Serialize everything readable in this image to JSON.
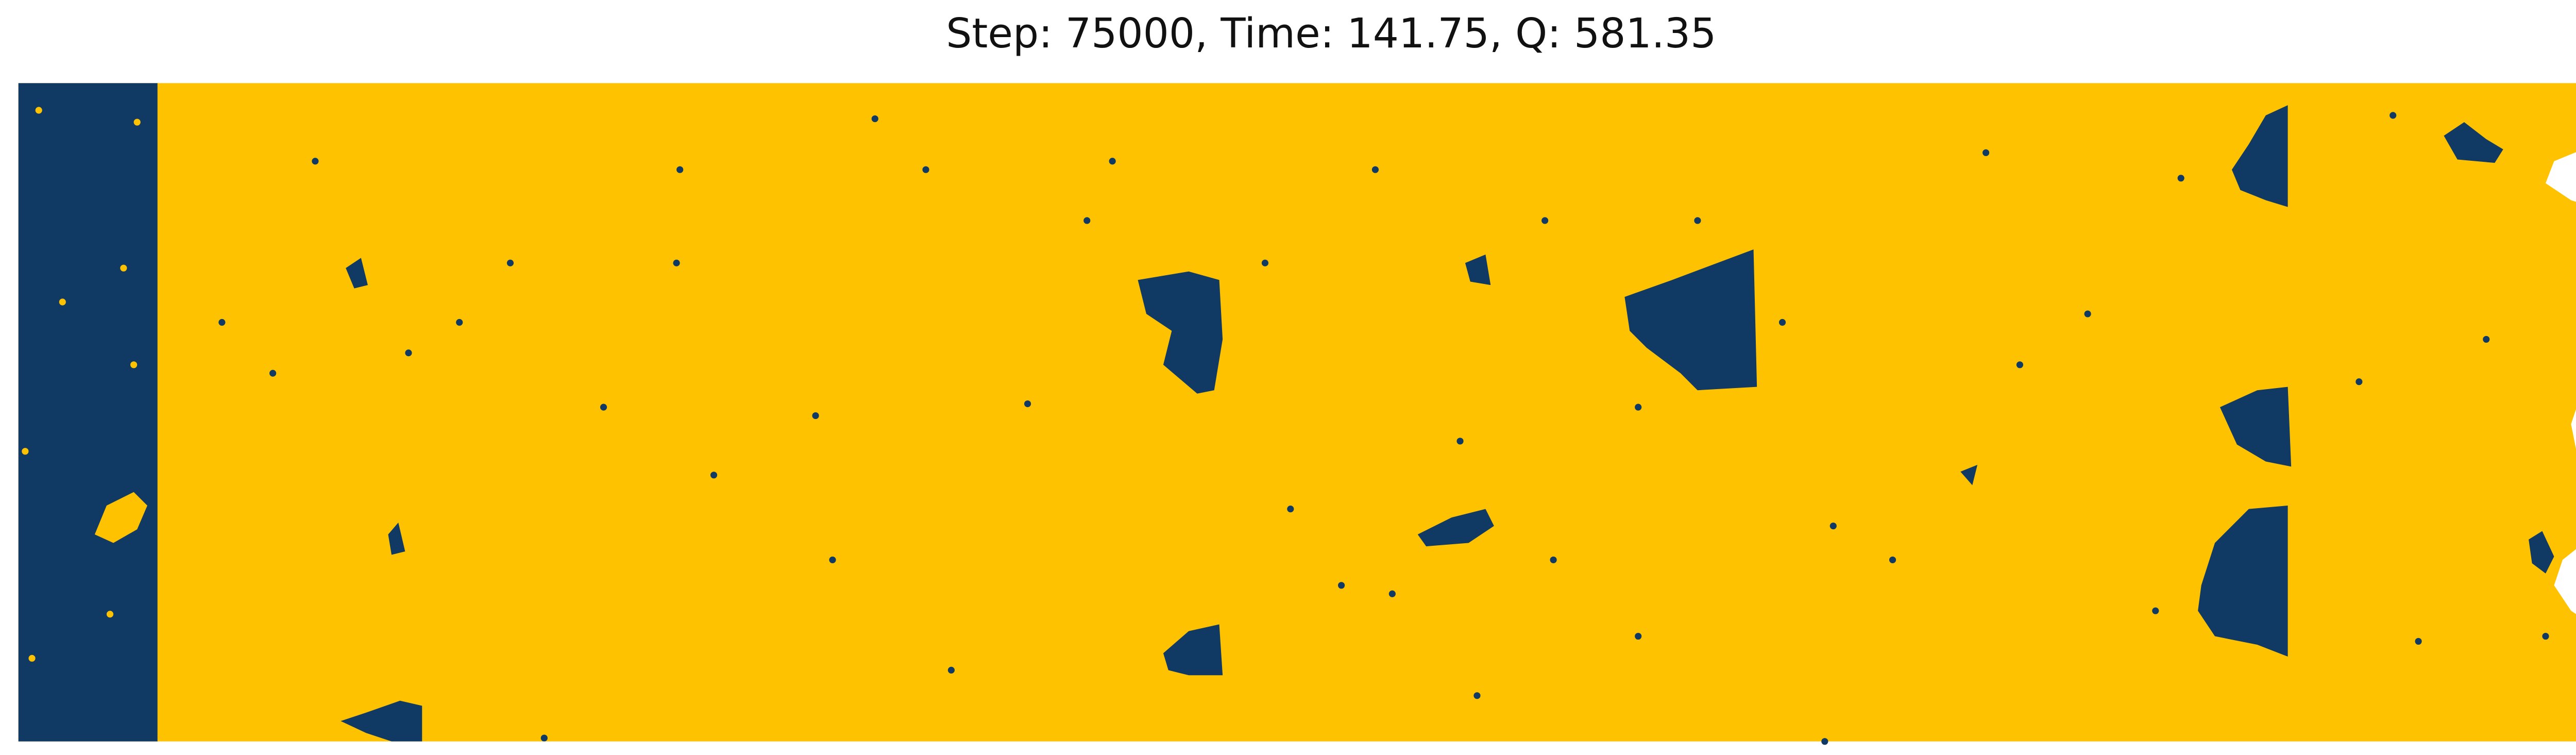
{
  "title": "Step: 75000, Time: 141.75, Q: 581.35"
}
